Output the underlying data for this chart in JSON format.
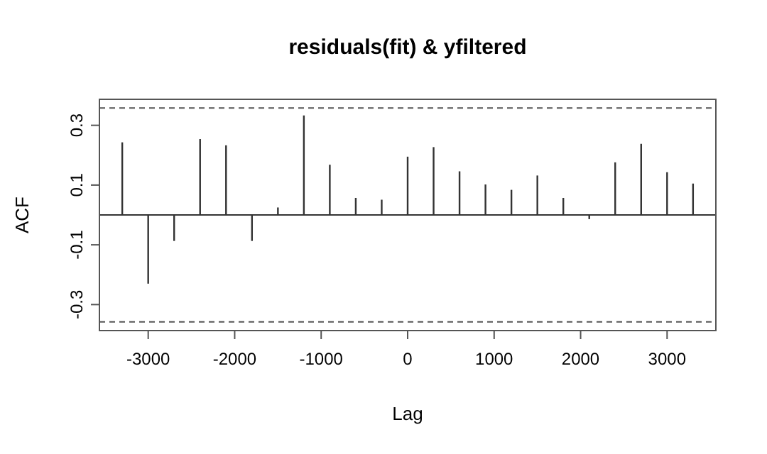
{
  "chart_data": {
    "type": "bar",
    "title": "residuals(fit) & yfiltered",
    "xlabel": "Lag",
    "ylabel": "ACF",
    "x": [
      -3300,
      -3000,
      -2700,
      -2400,
      -2100,
      -1800,
      -1500,
      -1200,
      -900,
      -600,
      -300,
      0,
      300,
      600,
      900,
      1200,
      1500,
      1800,
      2100,
      2400,
      2700,
      3000,
      3300
    ],
    "values": [
      0.243,
      -0.23,
      -0.087,
      0.254,
      0.233,
      -0.087,
      0.025,
      0.333,
      0.168,
      0.057,
      0.051,
      0.195,
      0.227,
      0.146,
      0.102,
      0.084,
      0.132,
      0.057,
      -0.014,
      0.176,
      0.238,
      0.143,
      0.105
    ],
    "color": "#333333",
    "xlim": [
      -3564,
      3564
    ],
    "xticks": [
      -3000,
      -2000,
      -1000,
      0,
      1000,
      2000,
      3000
    ],
    "ylim": [
      -0.387,
      0.387
    ],
    "yticks": [
      {
        "value": -0.3,
        "label": "-0.3"
      },
      {
        "value": -0.1,
        "label": "-0.1"
      },
      {
        "value": 0.1,
        "label": "0.1"
      },
      {
        "value": 0.3,
        "label": "0.3"
      }
    ],
    "ref_lines": [
      {
        "axis": "y",
        "value": 0,
        "color": "#333333",
        "line_style": "solid"
      },
      {
        "axis": "y",
        "value": 0.358,
        "color": "#555555",
        "line_style": "dashed"
      },
      {
        "axis": "y",
        "value": -0.358,
        "color": "#555555",
        "line_style": "dashed"
      }
    ],
    "grid": false
  }
}
